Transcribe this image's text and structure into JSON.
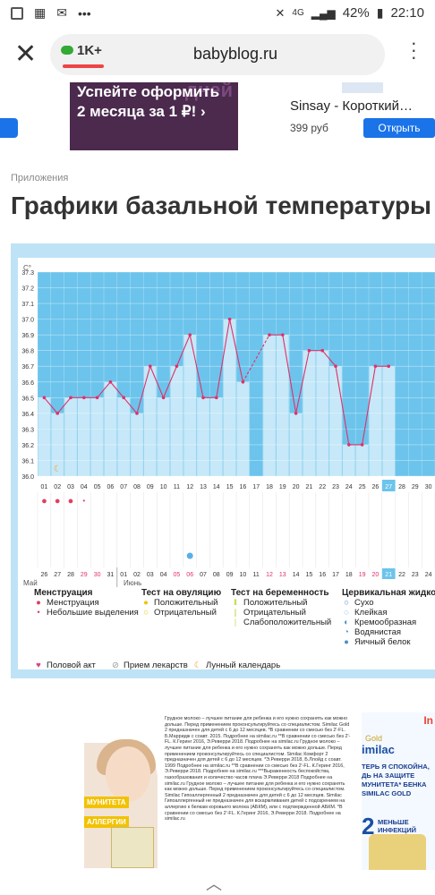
{
  "status": {
    "network": "4G",
    "battery": "42%",
    "time": "22:10"
  },
  "browser": {
    "tab_count": "1K+",
    "url": "babyblog.ru"
  },
  "ads_top": {
    "banner_text": "Успейте оформить 2 месяца за 1 ₽! ›",
    "product_name": "Sinsay - Короткий…",
    "product_price": "399 руб",
    "open_button": "Открыть"
  },
  "page": {
    "category": "Приложения",
    "title": "Графики базальной температуры"
  },
  "chart_data": {
    "type": "line",
    "title": "",
    "ylabel": "C°",
    "xlabel": "",
    "ylim": [
      36.0,
      37.3
    ],
    "y_ticks": [
      "37.3",
      "37.2",
      "37.1",
      "37.0",
      "36.9",
      "36.8",
      "36.7",
      "36.6",
      "36.5",
      "36.4",
      "36.3",
      "36.2",
      "36.1",
      "36.0"
    ],
    "cycle_days": [
      "01",
      "02",
      "03",
      "04",
      "05",
      "06",
      "07",
      "08",
      "09",
      "10",
      "11",
      "12",
      "13",
      "14",
      "15",
      "16",
      "17",
      "18",
      "19",
      "20",
      "21",
      "22",
      "23",
      "24",
      "25",
      "26",
      "27",
      "28",
      "29",
      "30"
    ],
    "current_day": "27",
    "values": [
      36.5,
      36.4,
      36.5,
      36.5,
      36.5,
      36.6,
      36.5,
      36.4,
      36.7,
      36.5,
      36.7,
      36.9,
      36.5,
      36.5,
      37.0,
      36.6,
      null,
      36.9,
      36.9,
      36.4,
      36.8,
      36.8,
      36.7,
      36.2,
      36.2,
      36.7,
      36.7,
      null,
      null,
      null
    ],
    "menstruation_days": [
      "01",
      "02",
      "03"
    ],
    "light_spotting_days": [
      "04"
    ],
    "egg_white_mucus_day": "12",
    "moon_day": "02",
    "calendar_dates": [
      "26",
      "27",
      "28",
      "29",
      "30",
      "31",
      "01",
      "02",
      "03",
      "04",
      "05",
      "06",
      "07",
      "08",
      "09",
      "10",
      "11",
      "12",
      "13",
      "14",
      "15",
      "16",
      "17",
      "18",
      "19",
      "20",
      "21",
      "22",
      "23",
      "24"
    ],
    "calendar_weekend": [
      "29",
      "30",
      "05",
      "06",
      "12",
      "13",
      "19",
      "20"
    ],
    "calendar_today": "21",
    "month_may": "Май",
    "month_june": "Июнь",
    "grid": true
  },
  "legend": {
    "menstruation_title": "Менструация",
    "menstruation": "Менструация",
    "light_spotting": "Небольшие выделения",
    "ovulation_title": "Тест на овуляцию",
    "ovulation_positive": "Положительный",
    "ovulation_negative": "Отрицательный",
    "pregnancy_title": "Тест на беременность",
    "pregnancy_positive": "Положительный",
    "pregnancy_negative": "Отрицательный",
    "pregnancy_weak": "Слабоположительный",
    "mucus_title": "Цервикальная жидкость",
    "mucus_dry": "Сухо",
    "mucus_sticky": "Клейкая",
    "mucus_creamy": "Кремообразная",
    "mucus_watery": "Водянистая",
    "mucus_eggwhite": "Яичный белок",
    "intercourse": "Половой акт",
    "medicine": "Прием лекарств",
    "lunar": "Лунный календарь"
  },
  "ad_bottom": {
    "fine_print": "Грудное молоко – лучшее питание для ребенка и его нужно сохранять как можно дольше. Перед применением проконсультируйтесь со специалистом. Similac Gold 2 предназначен для детей с 6 до 12 месяцев. *В сравнении со смесью без 2'-FL. Б.Марридж с соавт. 2015. Подробнее на similac.ru **В сравнении со смесью без 2'-FL. К.Геринг 2016, Э.Реверри 2018. Подробнее на similac.ru Грудное молоко – лучшее питание для ребенка и его нужно сохранять как можно дольше. Перед применением проконсультируйтесь со специалистом. Similac Комфорт 2 предназначен для детей с 6 до 12 месяцев. *Э.Реверри 2018, Б.Ллойд с соавт. 1999 Подробнее на similac.ru **В сравнении со смесью без 2'-FL. К.Геринг 2016, Э.Реверри 2018. Подробнее на similac.ru ***Выраженность беспокойства, газообразования и количество часов плача Э.Реверри 2018 Подробнее на similac.ru Грудное молоко – лучшее питание для ребенка и его нужно сохранять как можно дольше. Перед применением проконсультируйтесь со специалистом. Similac Гипоаллергенный 2 предназначен для детей с 6 до 12 месяцев. Similac Гипоаллергенный не предназначен для вскармливания детей с подозрением на аллергию к белкам коровьего молока (АБКМ), или с подтвержденной АБКМ. *В сравнении со смесью без 2'-FL. К.Геринг 2016, Э.Реверри 2018. Подробнее на similac.ru",
    "brand": "imilac",
    "brand_sub": "Gold",
    "slogan": "ТЕРЬ Я СПОКОЙНА, ДЬ НА ЗАЩИТЕ МУНИТЕТА* БЕНКА SIMILAC GOLD",
    "big_number": "2",
    "less_infections": "МЕНЬШЕ ИНФЕКЦИЙ",
    "tag1": "МУНИТЕТА",
    "tag2": "АЛЛЕРГИИ",
    "in_label": "In"
  }
}
